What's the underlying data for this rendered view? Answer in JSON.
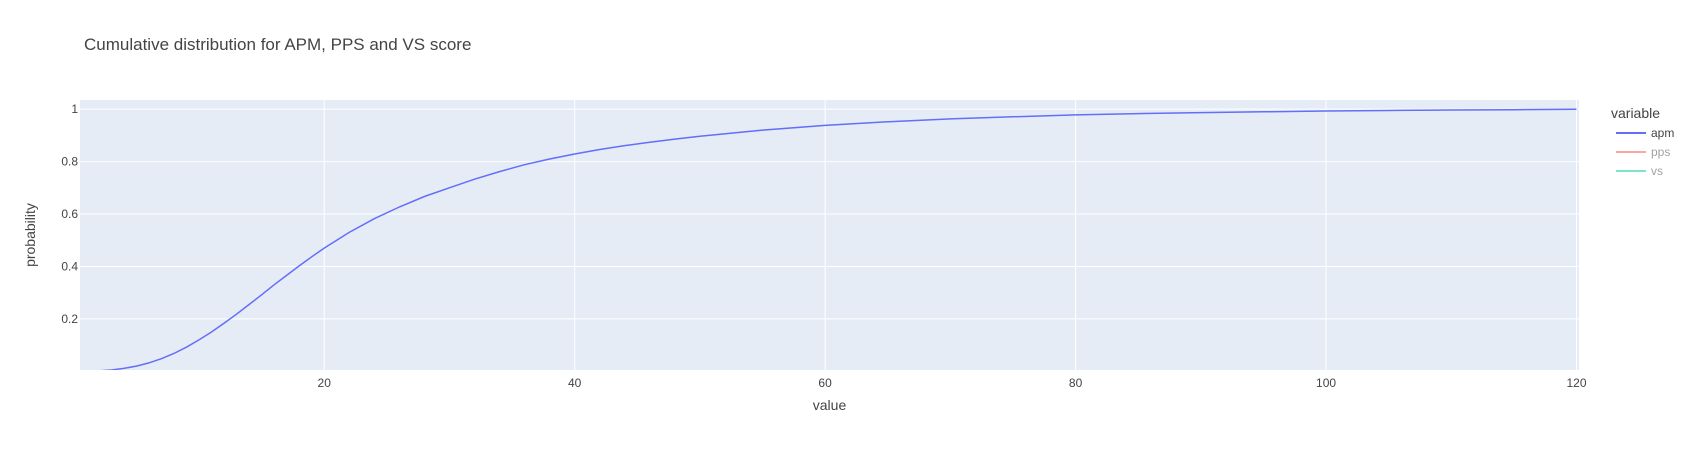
{
  "chart_data": {
    "type": "line",
    "title": "Cumulative distribution for APM, PPS and VS score",
    "xlabel": "value",
    "ylabel": "probability",
    "xlim": [
      0.5,
      120.2
    ],
    "ylim": [
      0.005,
      1.035
    ],
    "x_ticks": [
      20,
      40,
      60,
      80,
      100,
      120
    ],
    "y_ticks": [
      0.2,
      0.4,
      0.6,
      0.8,
      1
    ],
    "grid": true,
    "legend": {
      "title": "variable",
      "placement": "top-right",
      "entries": [
        {
          "name": "apm",
          "color": "#636efa",
          "visible": true
        },
        {
          "name": "pps",
          "color": "#ef553b",
          "visible": false
        },
        {
          "name": "vs",
          "color": "#00cc96",
          "visible": false
        }
      ]
    },
    "series": [
      {
        "name": "apm",
        "color": "#636efa",
        "x": [
          1,
          2,
          3,
          4,
          5,
          6,
          7,
          8,
          9,
          10,
          11,
          12,
          13,
          14,
          15,
          16,
          17,
          18,
          19,
          20,
          22,
          24,
          26,
          28,
          30,
          32,
          34,
          36,
          38,
          40,
          42,
          44,
          46,
          48,
          50,
          55,
          60,
          65,
          70,
          75,
          80,
          85,
          90,
          95,
          100,
          105,
          110,
          115,
          120
        ],
        "y": [
          0.0,
          0.002,
          0.005,
          0.011,
          0.02,
          0.032,
          0.048,
          0.068,
          0.092,
          0.12,
          0.15,
          0.183,
          0.218,
          0.255,
          0.292,
          0.33,
          0.366,
          0.402,
          0.437,
          0.47,
          0.53,
          0.582,
          0.627,
          0.667,
          0.7,
          0.733,
          0.762,
          0.788,
          0.81,
          0.829,
          0.846,
          0.861,
          0.874,
          0.886,
          0.897,
          0.92,
          0.938,
          0.952,
          0.963,
          0.971,
          0.978,
          0.983,
          0.987,
          0.99,
          0.993,
          0.995,
          0.997,
          0.998,
          1.0
        ]
      },
      {
        "name": "pps",
        "color": "#ef553b",
        "x": [],
        "y": []
      },
      {
        "name": "vs",
        "color": "#00cc96",
        "x": [],
        "y": []
      }
    ]
  }
}
